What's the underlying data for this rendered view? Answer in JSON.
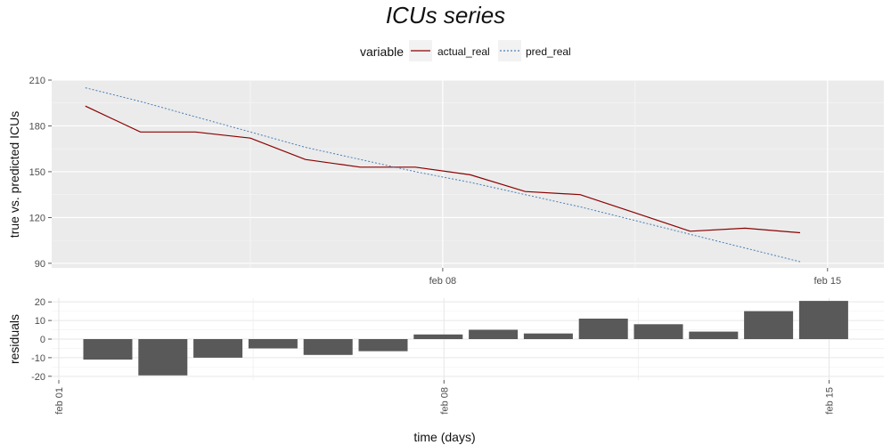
{
  "chart_data": [
    {
      "type": "line",
      "title": "ICUs series",
      "ylabel": "true vs. predicted ICUs",
      "xlabel": "",
      "ylim": [
        87,
        210
      ],
      "y_ticks": [
        90,
        120,
        150,
        180,
        210
      ],
      "x_ticks": [
        "feb 08",
        "feb 15"
      ],
      "legend": {
        "title": "variable",
        "position": "top"
      },
      "x": [
        "2021-02-01",
        "2021-02-02",
        "2021-02-03",
        "2021-02-04",
        "2021-02-05",
        "2021-02-06",
        "2021-02-07",
        "2021-02-08",
        "2021-02-09",
        "2021-02-10",
        "2021-02-11",
        "2021-02-12",
        "2021-02-13",
        "2021-02-14",
        "2021-02-15"
      ],
      "series": [
        {
          "name": "actual_real",
          "color": "#8b0000",
          "dash": "solid",
          "values": [
            193,
            176,
            176,
            172,
            158,
            153,
            153,
            148,
            137,
            135,
            123,
            111,
            113,
            110,
            null
          ]
        },
        {
          "name": "pred_real",
          "color": "#4a7fb5",
          "dash": "dotted",
          "values": [
            205,
            196,
            186,
            176,
            166,
            158,
            150,
            143,
            135,
            127,
            118,
            109,
            100,
            91,
            null
          ]
        }
      ]
    },
    {
      "type": "bar",
      "ylabel": "residuals",
      "xlabel": "time (days)",
      "ylim": [
        -22,
        22
      ],
      "y_ticks": [
        -20,
        -10,
        0,
        10,
        20
      ],
      "x_ticks": [
        "feb 01",
        "feb 08",
        "feb 15"
      ],
      "color": "#595959",
      "categories": [
        "2021-02-01",
        "2021-02-02",
        "2021-02-03",
        "2021-02-04",
        "2021-02-05",
        "2021-02-06",
        "2021-02-07",
        "2021-02-08",
        "2021-02-09",
        "2021-02-10",
        "2021-02-11",
        "2021-02-12",
        "2021-02-13",
        "2021-02-14"
      ],
      "values": [
        -11,
        -19.5,
        -10,
        -5,
        -8.5,
        -6.5,
        2.5,
        5,
        3,
        11,
        8,
        4,
        15,
        20.5
      ]
    }
  ]
}
